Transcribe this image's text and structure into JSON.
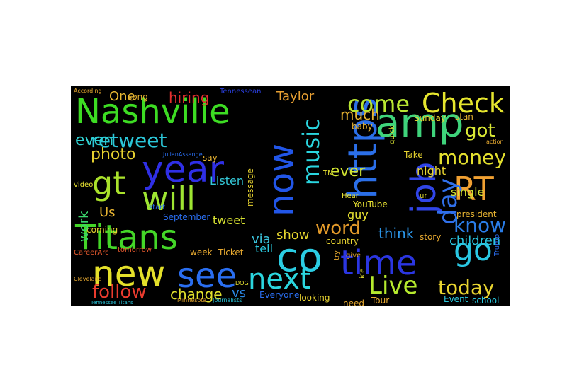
{
  "word_cloud": {
    "background": "#000000",
    "words": [
      {
        "text": "Nashville",
        "color": "#3ddc23"
      },
      {
        "text": "Titans",
        "color": "#44d628"
      },
      {
        "text": "year",
        "color": "#2f2fe6"
      },
      {
        "text": "gt",
        "color": "#a9e12b"
      },
      {
        "text": "will",
        "color": "#9ee532"
      },
      {
        "text": "new",
        "color": "#e4e02a"
      },
      {
        "text": "see",
        "color": "#2a6ef0"
      },
      {
        "text": "now",
        "color": "#2256e8"
      },
      {
        "text": "https",
        "color": "#2b6fe8"
      },
      {
        "text": "amp",
        "color": "#3fd37b"
      },
      {
        "text": "co",
        "color": "#2bcde3"
      },
      {
        "text": "time",
        "color": "#2b36e2"
      },
      {
        "text": "job",
        "color": "#3045e8"
      },
      {
        "text": "RT",
        "color": "#f0a032"
      },
      {
        "text": "Check",
        "color": "#e6e62e"
      },
      {
        "text": "come",
        "color": "#b8e632"
      },
      {
        "text": "go",
        "color": "#2ac8e3"
      },
      {
        "text": "next",
        "color": "#2bd6df"
      },
      {
        "text": "Live",
        "color": "#b6ea2e"
      },
      {
        "text": "today",
        "color": "#e8d430"
      },
      {
        "text": "retweet",
        "color": "#2bc6d8"
      },
      {
        "text": "music",
        "color": "#2ad6e0"
      },
      {
        "text": "day",
        "color": "#3070ea"
      },
      {
        "text": "know",
        "color": "#2a7de8"
      },
      {
        "text": "money",
        "color": "#e2df2e"
      },
      {
        "text": "got",
        "color": "#d9e835"
      },
      {
        "text": "follow",
        "color": "#ea3b2e"
      },
      {
        "text": "word",
        "color": "#e39a2a"
      },
      {
        "text": "even",
        "color": "#2fd3d3"
      },
      {
        "text": "ever",
        "color": "#d3e632"
      },
      {
        "text": "photo",
        "color": "#e7d230"
      },
      {
        "text": "hiring",
        "color": "#e32f2f"
      },
      {
        "text": "change",
        "color": "#e0e02c"
      },
      {
        "text": "show",
        "color": "#e6d62e"
      },
      {
        "text": "think",
        "color": "#2b95e8"
      },
      {
        "text": "children",
        "color": "#2ac4de"
      },
      {
        "text": "much",
        "color": "#e8b432"
      },
      {
        "text": "Listen",
        "color": "#34c8d8"
      },
      {
        "text": "One",
        "color": "#e8b832"
      },
      {
        "text": "Taylor",
        "color": "#e8a032"
      },
      {
        "text": "Tennessean",
        "color": "#2a3fe0"
      },
      {
        "text": "vs",
        "color": "#2b89e8"
      },
      {
        "text": "via",
        "color": "#3bc3dc"
      },
      {
        "text": "tweet",
        "color": "#d8e232"
      },
      {
        "text": "week",
        "color": "#e8aa30"
      },
      {
        "text": "Ticket",
        "color": "#e8aa30"
      },
      {
        "text": "Us",
        "color": "#e8b432"
      },
      {
        "text": "single",
        "color": "#d8e632"
      },
      {
        "text": "night",
        "color": "#e8d430"
      },
      {
        "text": "tell",
        "color": "#2ac8de"
      },
      {
        "text": "guy",
        "color": "#e8e232"
      },
      {
        "text": "school",
        "color": "#2ac8de"
      },
      {
        "text": "Event",
        "color": "#2ac8de"
      },
      {
        "text": "need",
        "color": "#e8aa30"
      },
      {
        "text": "Tour",
        "color": "#e8aa30"
      },
      {
        "text": "looking",
        "color": "#e8d430"
      },
      {
        "text": "Everyone",
        "color": "#2a6ef0"
      },
      {
        "text": "country",
        "color": "#e8d430"
      },
      {
        "text": "story",
        "color": "#e8aa30"
      },
      {
        "text": "president",
        "color": "#e8b432"
      },
      {
        "text": "September",
        "color": "#2a6ef0"
      },
      {
        "text": "coming",
        "color": "#e8d430"
      },
      {
        "text": "video",
        "color": "#e8e232"
      },
      {
        "text": "work",
        "color": "#3bd66c"
      },
      {
        "text": "tomorrow",
        "color": "#e85a2e"
      },
      {
        "text": "CareerArc",
        "color": "#e85a2e"
      },
      {
        "text": "Take",
        "color": "#e8d430"
      },
      {
        "text": "Sunday",
        "color": "#e8d430"
      },
      {
        "text": "stan",
        "color": "#e8b432"
      },
      {
        "text": "song",
        "color": "#e8b432"
      },
      {
        "text": "message",
        "color": "#e8d430"
      },
      {
        "text": "baby",
        "color": "#e8b432"
      },
      {
        "text": "TN",
        "color": "#e8e232"
      },
      {
        "text": "YouTube",
        "color": "#e8e232"
      },
      {
        "text": "start",
        "color": "#2a6ef0"
      },
      {
        "text": "say",
        "color": "#e8b432"
      },
      {
        "text": "Hear",
        "color": "#e8e232"
      },
      {
        "text": "Trump",
        "color": "#2a6ef0"
      },
      {
        "text": "quick",
        "color": "#d8e232"
      },
      {
        "text": "ur",
        "color": "#e8e232"
      },
      {
        "text": "DOG",
        "color": "#e8e232"
      },
      {
        "text": "give",
        "color": "#e8aa30"
      },
      {
        "text": "try",
        "color": "#e8aa30"
      },
      {
        "text": "ice",
        "color": "#e8e232"
      },
      {
        "text": "According",
        "color": "#e8aa30"
      },
      {
        "text": "JulianAssange",
        "color": "#2a6ef0"
      },
      {
        "text": "action",
        "color": "#e8aa30"
      },
      {
        "text": "Journalists",
        "color": "#2ac8de"
      },
      {
        "text": "Minnesota",
        "color": "#e8aa30"
      },
      {
        "text": "Cleveland",
        "color": "#e8aa30"
      },
      {
        "text": "Tennessee Titans",
        "color": "#2ac8de"
      }
    ]
  }
}
